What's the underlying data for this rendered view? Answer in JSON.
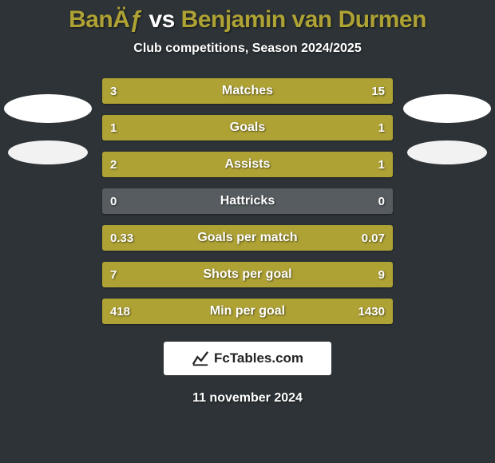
{
  "background_color": "#2d3336",
  "light_bar_color": "#565c5f",
  "title": {
    "player1": "BanÄƒ",
    "vs": "vs",
    "player2": "Benjamin van Durmen",
    "p1_color": "#aea235",
    "p2_color": "#aea235"
  },
  "subtitle": "Club competitions, Season 2024/2025",
  "avatars": {
    "left_bg": "#ffffff",
    "left_bg2": "#f2f2f2",
    "right_bg": "#ffffff",
    "right_bg2": "#f2f2f2"
  },
  "bars": [
    {
      "label": "Matches",
      "left": "3",
      "right": "15",
      "left_pct": 16.7,
      "right_pct": 83.3,
      "left_color": "#aea235",
      "right_color": "#aea235"
    },
    {
      "label": "Goals",
      "left": "1",
      "right": "1",
      "left_pct": 50.0,
      "right_pct": 50.0,
      "left_color": "#aea235",
      "right_color": "#aea235"
    },
    {
      "label": "Assists",
      "left": "2",
      "right": "1",
      "left_pct": 66.7,
      "right_pct": 33.3,
      "left_color": "#aea235",
      "right_color": "#aea235"
    },
    {
      "label": "Hattricks",
      "left": "0",
      "right": "0",
      "left_pct": 0.0,
      "right_pct": 0.0,
      "left_color": "#aea235",
      "right_color": "#aea235"
    },
    {
      "label": "Goals per match",
      "left": "0.33",
      "right": "0.07",
      "left_pct": 82.5,
      "right_pct": 17.5,
      "left_color": "#aea235",
      "right_color": "#aea235"
    },
    {
      "label": "Shots per goal",
      "left": "7",
      "right": "9",
      "left_pct": 43.8,
      "right_pct": 56.2,
      "left_color": "#aea235",
      "right_color": "#aea235"
    },
    {
      "label": "Min per goal",
      "left": "418",
      "right": "1430",
      "left_pct": 22.6,
      "right_pct": 77.4,
      "left_color": "#aea235",
      "right_color": "#aea235"
    }
  ],
  "brand": "FcTables.com",
  "date": "11 november 2024"
}
